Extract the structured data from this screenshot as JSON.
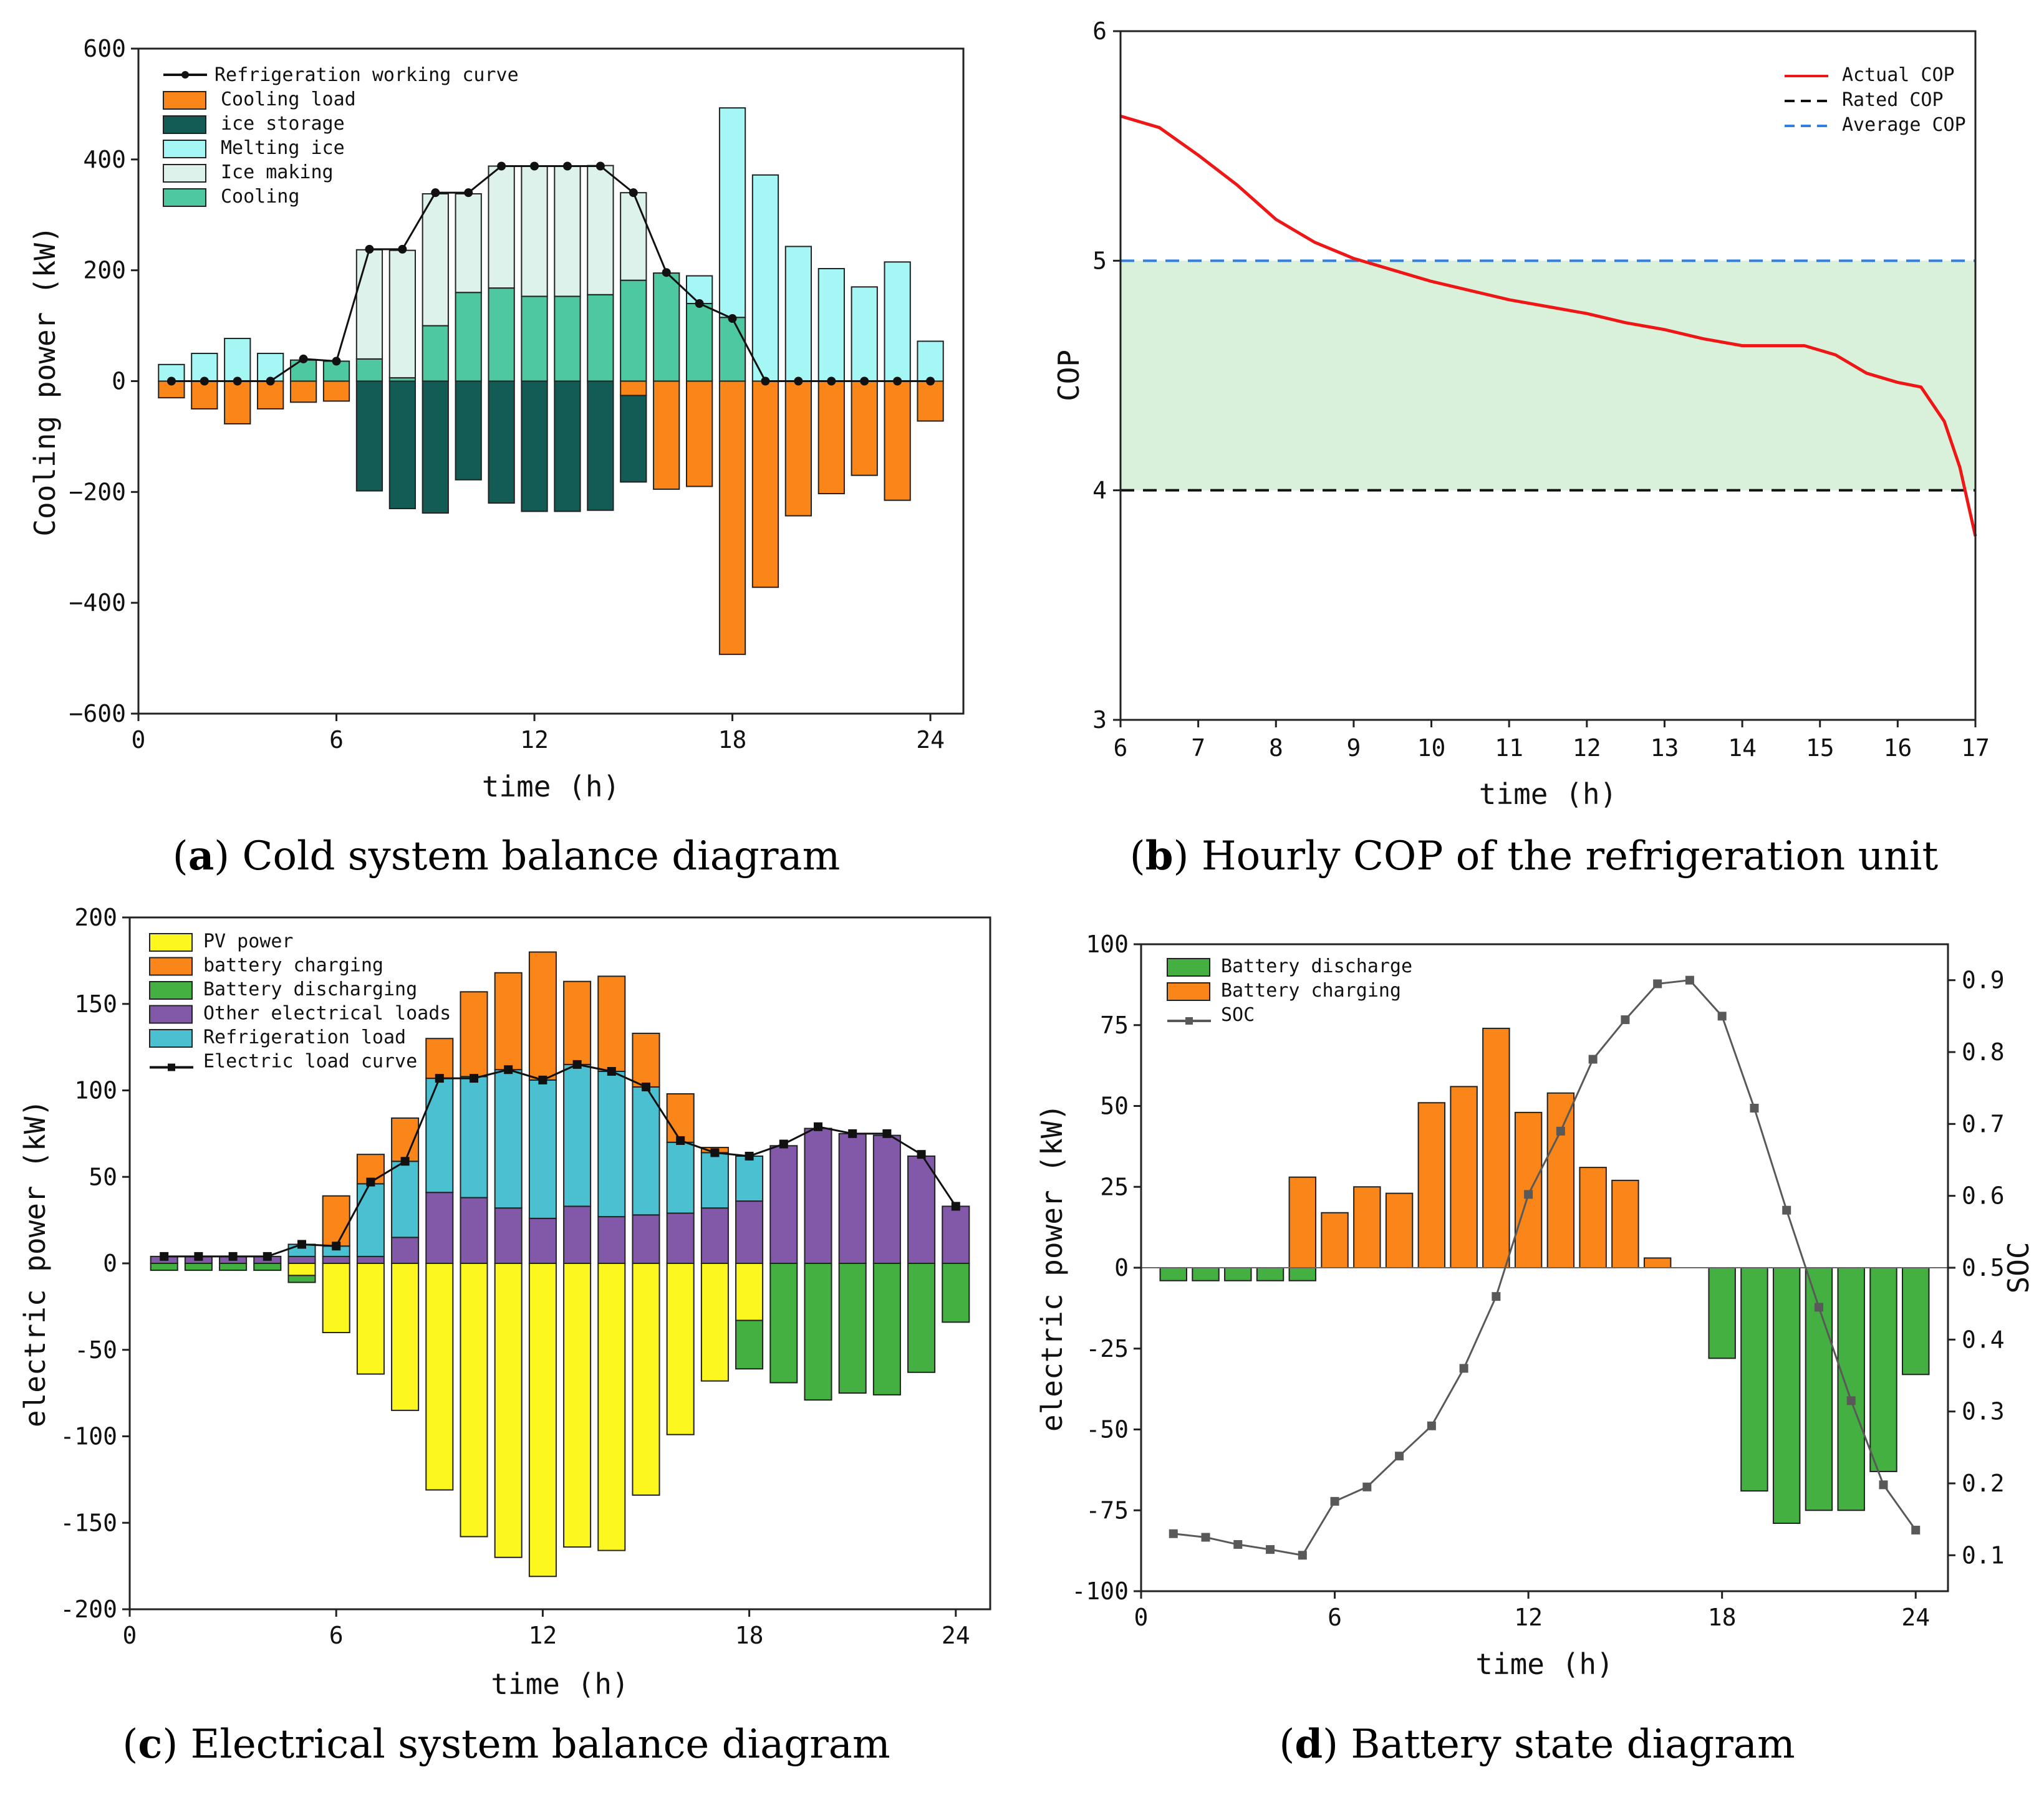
{
  "colors": {
    "orange": "#fa8518",
    "darkteal": "#125c55",
    "cyan": "#a5f7f5",
    "lightteal": "#dcf2ea",
    "teal": "#4ec8a0",
    "yellow": "#fcf71f",
    "green": "#44b042",
    "purple": "#8259a8",
    "blue": "#4ac0d1",
    "red": "#f01616",
    "band": "#d9f0da",
    "dashblue": "#2f7fe3",
    "socgray": "#595959"
  },
  "chart_data": [
    {
      "id": "a",
      "type": "bar",
      "caption": {
        "letter": "a",
        "text": " Cold system balance diagram"
      },
      "xlabel": "time (h)",
      "ylabel": "Cooling power (kW)",
      "xlim": [
        0,
        25
      ],
      "ylim": [
        -600,
        600
      ],
      "xticks": [
        "0",
        "6",
        "12",
        "18",
        "24"
      ],
      "yticks": [
        "600",
        "400",
        "200",
        "0",
        "−200",
        "−400",
        "−600"
      ],
      "legend": [
        "Refrigeration working curve",
        "Cooling load",
        "ice storage",
        "Melting ice",
        "Ice making",
        "Cooling"
      ],
      "x": [
        1,
        2,
        3,
        4,
        5,
        6,
        7,
        8,
        9,
        10,
        11,
        12,
        13,
        14,
        15,
        16,
        17,
        18,
        19,
        20,
        21,
        22,
        23,
        24
      ],
      "series": [
        {
          "name": "Cooling",
          "values": [
            0,
            0,
            0,
            0,
            38,
            36,
            40,
            6,
            100,
            160,
            168,
            153,
            153,
            156,
            182,
            195,
            140,
            115,
            0,
            0,
            0,
            0,
            0,
            0
          ]
        },
        {
          "name": "Melting ice",
          "values": [
            30,
            50,
            77,
            50,
            0,
            0,
            0,
            0,
            0,
            0,
            0,
            0,
            0,
            0,
            0,
            0,
            50,
            378,
            372,
            243,
            203,
            170,
            215,
            72
          ]
        },
        {
          "name": "Ice making",
          "values": [
            0,
            0,
            0,
            0,
            0,
            0,
            197,
            230,
            238,
            178,
            220,
            235,
            235,
            233,
            158,
            0,
            0,
            0,
            0,
            0,
            0,
            0,
            0,
            0
          ]
        },
        {
          "name": "Cooling load",
          "values": [
            -30,
            -50,
            -77,
            -50,
            -38,
            -36,
            -42,
            -6,
            -100,
            -160,
            -170,
            -153,
            -153,
            -156,
            -182,
            -195,
            -190,
            -493,
            -372,
            -243,
            -203,
            -170,
            -215,
            -72
          ]
        },
        {
          "name": "ice storage",
          "values": [
            0,
            0,
            0,
            0,
            0,
            0,
            -198,
            -230,
            -238,
            -178,
            -220,
            -235,
            -235,
            -233,
            -156,
            0,
            0,
            0,
            0,
            0,
            0,
            0,
            0,
            0
          ]
        },
        {
          "name": "Refrigeration working curve",
          "values": [
            0,
            0,
            0,
            0,
            40,
            36,
            238,
            238,
            340,
            340,
            388,
            388,
            388,
            388,
            340,
            196,
            140,
            113,
            0,
            0,
            0,
            0,
            0,
            0
          ]
        }
      ]
    },
    {
      "id": "b",
      "type": "line",
      "caption": {
        "letter": "b",
        "text": " Hourly COP of the refrigeration unit"
      },
      "xlabel": "time (h)",
      "ylabel": "COP",
      "xlim": [
        6,
        17
      ],
      "ylim": [
        3,
        6
      ],
      "xticks": [
        "6",
        "7",
        "8",
        "9",
        "10",
        "11",
        "12",
        "13",
        "14",
        "15",
        "16",
        "17"
      ],
      "yticks": [
        "6",
        "5",
        "4",
        "3"
      ],
      "legend": [
        "Actual COP",
        "Rated COP",
        "Average COP"
      ],
      "band": [
        4,
        5
      ],
      "rated_cop": 4,
      "average_cop": 5,
      "series": [
        {
          "name": "Actual COP",
          "x": [
            6,
            6.5,
            7,
            7.5,
            8,
            8.5,
            9,
            9.5,
            10,
            10.5,
            11,
            11.5,
            12,
            12.5,
            13,
            13.5,
            14,
            14.5,
            14.8,
            15.2,
            15.6,
            16,
            16.3,
            16.6,
            16.8,
            17
          ],
          "values": [
            5.63,
            5.58,
            5.46,
            5.33,
            5.18,
            5.08,
            5.01,
            4.96,
            4.91,
            4.87,
            4.83,
            4.8,
            4.77,
            4.73,
            4.7,
            4.66,
            4.63,
            4.63,
            4.63,
            4.59,
            4.51,
            4.47,
            4.45,
            4.3,
            4.1,
            3.8
          ]
        }
      ]
    },
    {
      "id": "c",
      "type": "bar",
      "caption": {
        "letter": "c",
        "text": " Electrical system balance diagram"
      },
      "xlabel": "time (h)",
      "ylabel": "electric power (kW)",
      "xlim": [
        0,
        25
      ],
      "ylim": [
        -200,
        200
      ],
      "xticks": [
        "0",
        "6",
        "12",
        "18",
        "24"
      ],
      "yticks": [
        "200",
        "150",
        "100",
        "50",
        "0",
        "-50",
        "-100",
        "-150",
        "-200"
      ],
      "legend": [
        "PV power",
        "battery charging",
        "Battery discharging",
        "Other electrical loads",
        "Refrigeration load",
        "Electric load curve"
      ],
      "x": [
        1,
        2,
        3,
        4,
        5,
        6,
        7,
        8,
        9,
        10,
        11,
        12,
        13,
        14,
        15,
        16,
        17,
        18,
        19,
        20,
        21,
        22,
        23,
        24
      ],
      "series": [
        {
          "name": "Other electrical loads",
          "values": [
            4,
            4,
            4,
            4,
            4,
            4,
            4,
            15,
            41,
            38,
            32,
            26,
            33,
            27,
            28,
            29,
            32,
            36,
            68,
            78,
            75,
            74,
            62,
            33
          ]
        },
        {
          "name": "Refrigeration load",
          "values": [
            0,
            0,
            0,
            0,
            7,
            6,
            42,
            44,
            66,
            70,
            80,
            80,
            82,
            84,
            74,
            41,
            32,
            26,
            0,
            0,
            0,
            0,
            0,
            0
          ]
        },
        {
          "name": "battery charging",
          "values": [
            0,
            0,
            0,
            0,
            0,
            29,
            17,
            25,
            23,
            49,
            56,
            74,
            48,
            55,
            31,
            28,
            3,
            0,
            0,
            0,
            0,
            0,
            0,
            0
          ]
        },
        {
          "name": "PV power",
          "values": [
            0,
            0,
            0,
            0,
            -7,
            -40,
            -64,
            -85,
            -131,
            -158,
            -170,
            -181,
            -164,
            -166,
            -134,
            -99,
            -68,
            -33,
            0,
            0,
            0,
            0,
            0,
            0
          ]
        },
        {
          "name": "Battery discharging",
          "values": [
            -4,
            -4,
            -4,
            -4,
            -4,
            0,
            0,
            0,
            0,
            0,
            0,
            0,
            0,
            0,
            0,
            0,
            0,
            -28,
            -69,
            -79,
            -75,
            -76,
            -63,
            -34
          ]
        },
        {
          "name": "Electric load curve",
          "values": [
            4,
            4,
            4,
            4,
            11,
            10,
            47,
            59,
            107,
            107,
            112,
            106,
            115,
            111,
            102,
            71,
            64,
            62,
            69,
            79,
            75,
            75,
            63,
            33
          ]
        }
      ]
    },
    {
      "id": "d",
      "type": "bar",
      "caption": {
        "letter": "d",
        "text": " Battery state diagram"
      },
      "xlabel": "time (h)",
      "ylabel": "electric power (kW)",
      "ylabel2": "SOC",
      "xlim": [
        0,
        25
      ],
      "ylim": [
        -100,
        100
      ],
      "y2lim": [
        0.05,
        0.95
      ],
      "xticks": [
        "0",
        "6",
        "12",
        "18",
        "24"
      ],
      "yticks": [
        "100",
        "75",
        "50",
        "25",
        "0",
        "-25",
        "-50",
        "-75",
        "-100"
      ],
      "y2ticks": [
        "0.9",
        "0.8",
        "0.7",
        "0.6",
        "0.5",
        "0.4",
        "0.3",
        "0.2",
        "0.1"
      ],
      "legend": [
        "Battery discharge",
        "Battery charging",
        "SOC"
      ],
      "x": [
        1,
        2,
        3,
        4,
        5,
        6,
        7,
        8,
        9,
        10,
        11,
        12,
        13,
        14,
        15,
        16,
        17,
        18,
        19,
        20,
        21,
        22,
        23,
        24
      ],
      "series": [
        {
          "name": "Battery charging",
          "values": [
            0,
            0,
            0,
            0,
            28,
            17,
            25,
            23,
            51,
            56,
            74,
            48,
            54,
            31,
            27,
            3,
            0,
            0,
            0,
            0,
            0,
            0,
            0,
            0
          ]
        },
        {
          "name": "Battery discharge",
          "values": [
            -4,
            -4,
            -4,
            -4,
            -4,
            0,
            0,
            0,
            0,
            0,
            0,
            0,
            0,
            0,
            0,
            0,
            0,
            -28,
            -69,
            -79,
            -75,
            -75,
            -63,
            -33
          ]
        },
        {
          "name": "SOC",
          "values": [
            0.13,
            0.125,
            0.115,
            0.108,
            0.1,
            0.175,
            0.195,
            0.238,
            0.28,
            0.36,
            0.46,
            0.602,
            0.69,
            0.79,
            0.845,
            0.895,
            0.9,
            0.85,
            0.722,
            0.58,
            0.445,
            0.315,
            0.198,
            0.135
          ]
        }
      ]
    }
  ]
}
